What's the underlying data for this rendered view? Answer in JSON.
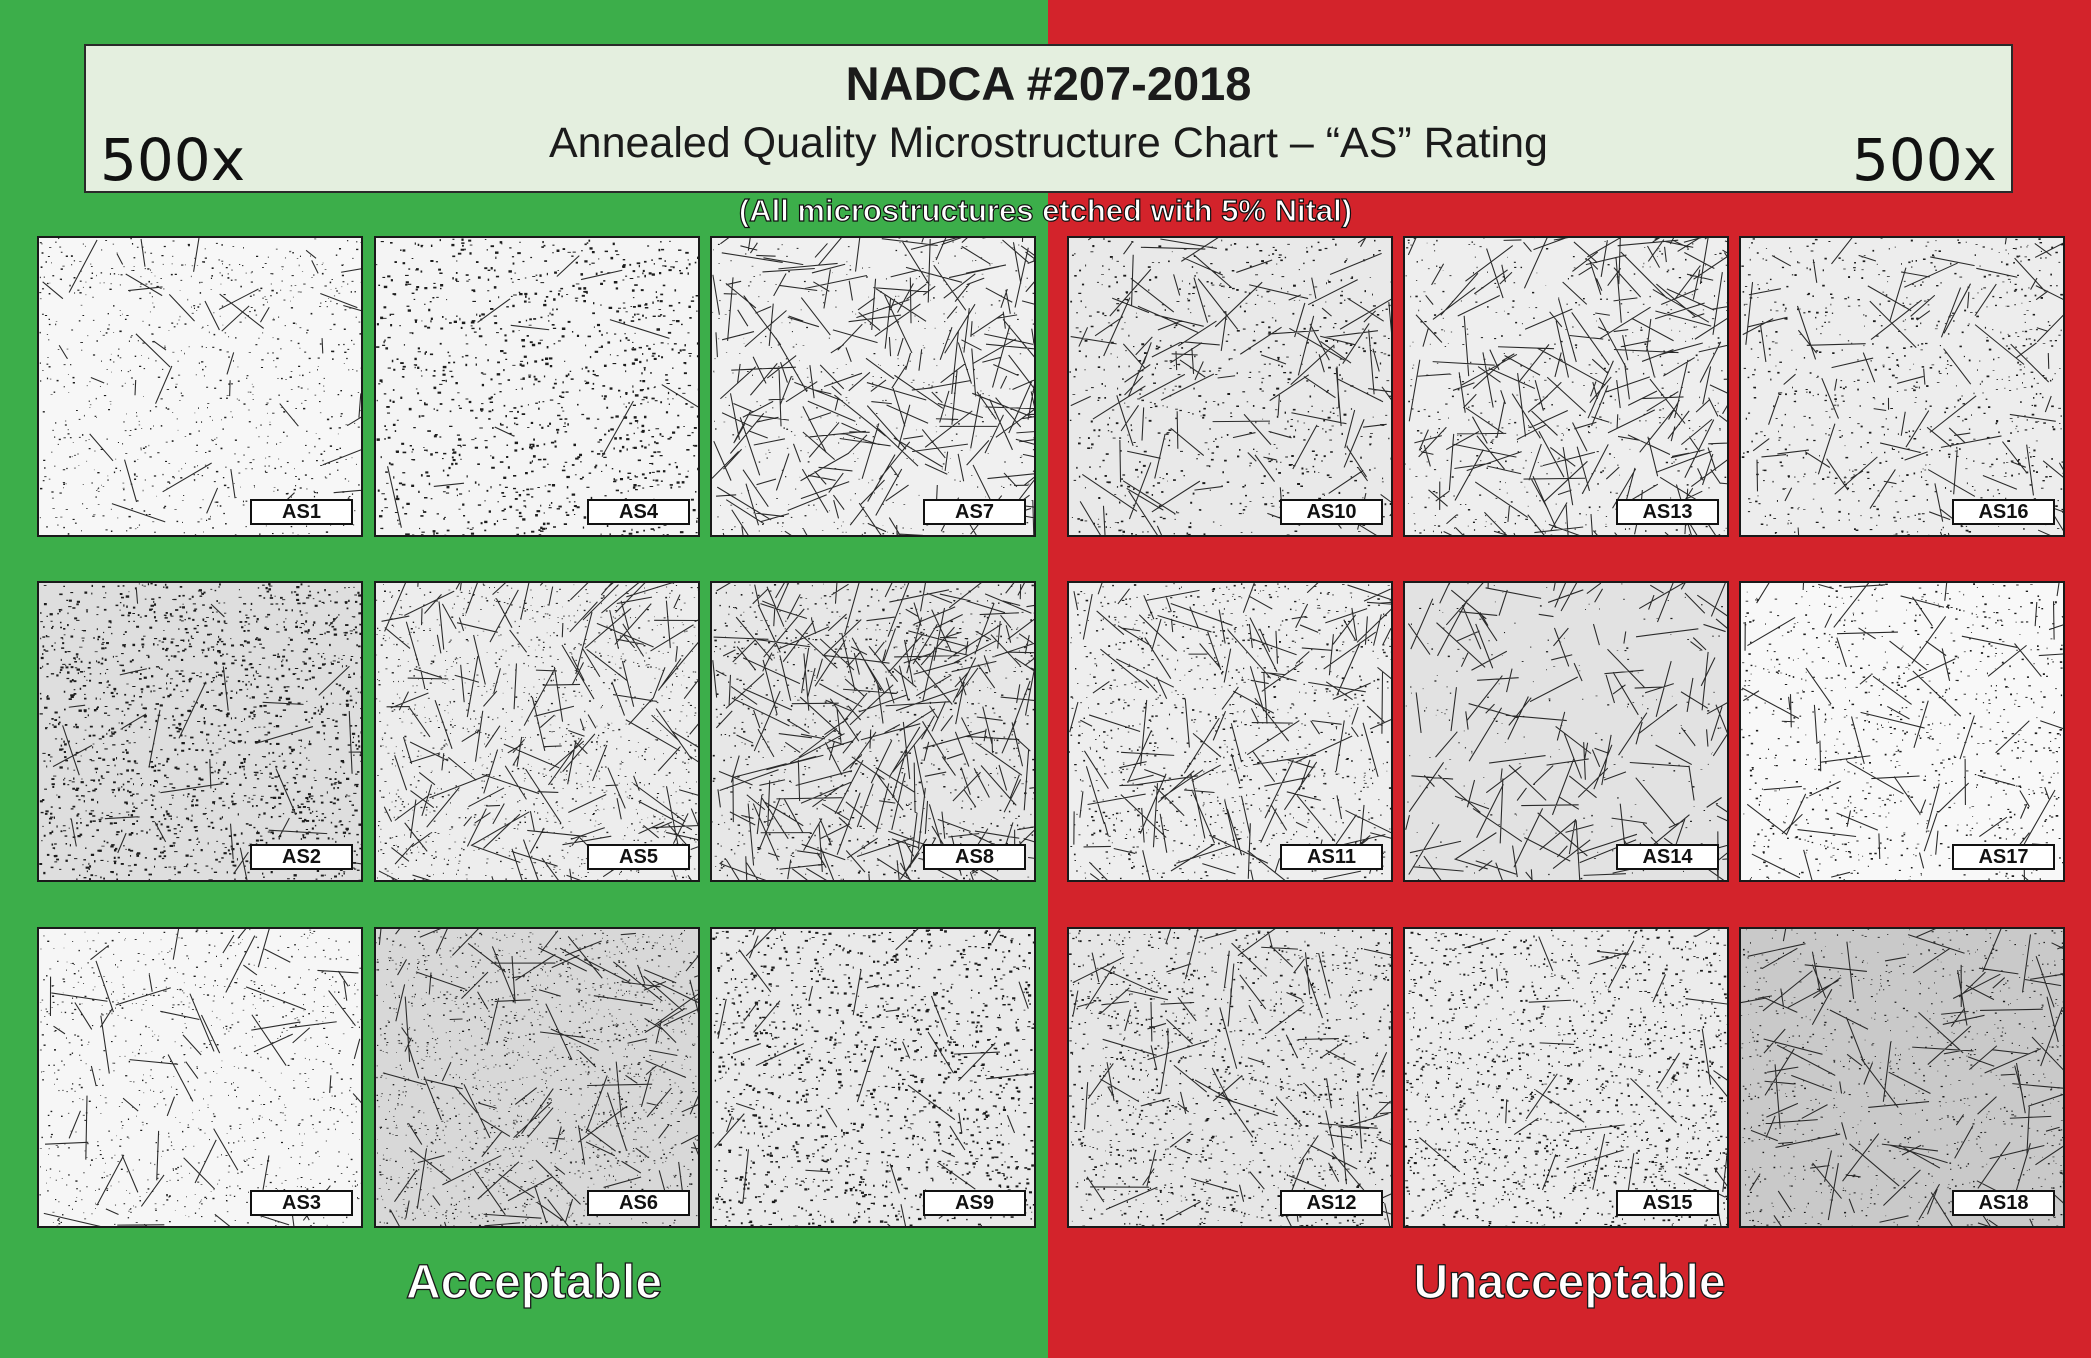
{
  "colors": {
    "acceptable_bg": "#3cae4a",
    "unacceptable_bg": "#d3232b",
    "header_bg": "#e4efdf"
  },
  "header": {
    "title": "NADCA #207-2018",
    "subtitle": "Annealed Quality Microstructure Chart – “AS” Rating",
    "magnification_left": "500x",
    "magnification_right": "500x"
  },
  "note": "(All microstructures etched with 5% Nital)",
  "groups": {
    "acceptable": {
      "label": "Acceptable"
    },
    "unacceptable": {
      "label": "Unacceptable"
    }
  },
  "samples": [
    {
      "id": "AS1"
    },
    {
      "id": "AS4"
    },
    {
      "id": "AS7"
    },
    {
      "id": "AS10"
    },
    {
      "id": "AS13"
    },
    {
      "id": "AS16"
    },
    {
      "id": "AS2"
    },
    {
      "id": "AS5"
    },
    {
      "id": "AS8"
    },
    {
      "id": "AS11"
    },
    {
      "id": "AS14"
    },
    {
      "id": "AS17"
    },
    {
      "id": "AS3"
    },
    {
      "id": "AS6"
    },
    {
      "id": "AS9"
    },
    {
      "id": "AS12"
    },
    {
      "id": "AS15"
    },
    {
      "id": "AS18"
    }
  ]
}
